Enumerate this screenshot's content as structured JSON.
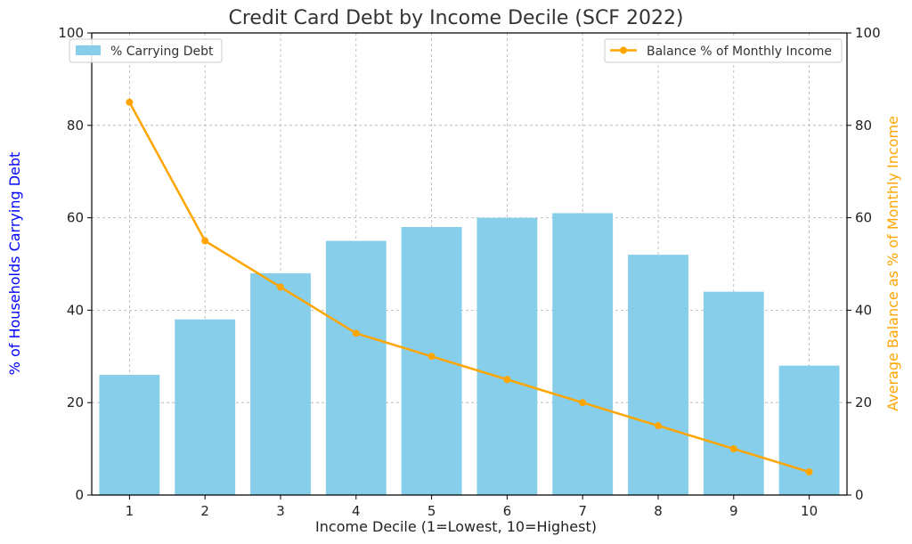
{
  "chart_data": {
    "type": "bar",
    "title": "Credit Card Debt by Income Decile (SCF 2022)",
    "xlabel": "Income Decile (1=Lowest, 10=Highest)",
    "ylabel_left": "% of Households Carrying Debt",
    "ylabel_right": "Average Balance as % of Monthly Income",
    "categories": [
      "1",
      "2",
      "3",
      "4",
      "5",
      "6",
      "7",
      "8",
      "9",
      "10"
    ],
    "ylim_left": [
      0,
      100
    ],
    "ylim_right": [
      0,
      100
    ],
    "y_ticks_left": [
      "0",
      "20",
      "40",
      "60",
      "80",
      "100"
    ],
    "y_ticks_right": [
      "0",
      "20",
      "40",
      "60",
      "80",
      "100"
    ],
    "grid": true,
    "series": [
      {
        "name": "% Carrying Debt",
        "type": "bar",
        "axis": "left",
        "color": "#87CEEB",
        "values": [
          26,
          38,
          48,
          55,
          58,
          60,
          61,
          52,
          44,
          28
        ]
      },
      {
        "name": "Balance % of Monthly Income",
        "type": "line",
        "axis": "right",
        "color": "#FFA500",
        "values": [
          85,
          55,
          45,
          35,
          30,
          25,
          20,
          15,
          10,
          5
        ]
      }
    ],
    "legend_left_placement": "top-left",
    "legend_right_placement": "top-right",
    "ylabel_left_color": "#0000FF",
    "ylabel_right_color": "#FFA500"
  }
}
